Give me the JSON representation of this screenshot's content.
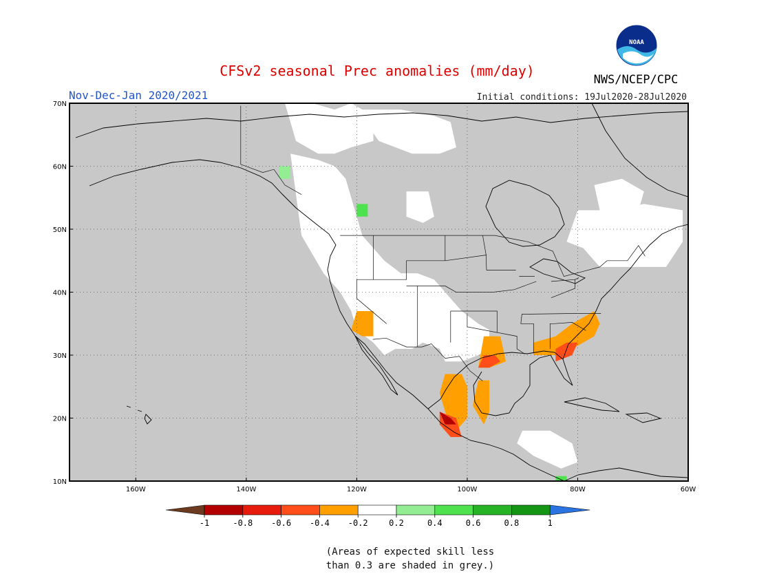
{
  "title": "CFSv2 seasonal Prec anomalies (mm/day)",
  "subtitle_left": "Nov-Dec-Jan 2020/2021",
  "initial_conditions": "Initial conditions: 19Jul2020-28Jul2020",
  "agency": "NWS/NCEP/CPC",
  "logo_text": "NOAA",
  "note_line1": "(Areas of expected skill less",
  "note_line2": "than 0.3 are shaded in grey.)",
  "colors": {
    "title": "#dd0000",
    "subtitle": "#2255cc",
    "grey_mask": "#c8c8c8",
    "no_anomaly": "#ffffff",
    "coast": "#000000"
  },
  "map": {
    "projection": "equirectangular",
    "lon_range": [
      -172,
      -60
    ],
    "lat_range": [
      10,
      70
    ],
    "lat_ticks": [
      {
        "value": 70,
        "label": "70N"
      },
      {
        "value": 60,
        "label": "60N"
      },
      {
        "value": 50,
        "label": "50N"
      },
      {
        "value": 40,
        "label": "40N"
      },
      {
        "value": 30,
        "label": "30N"
      },
      {
        "value": 20,
        "label": "20N"
      },
      {
        "value": 10,
        "label": "10N"
      }
    ],
    "lon_ticks": [
      {
        "value": -160,
        "label": "160W"
      },
      {
        "value": -140,
        "label": "140W"
      },
      {
        "value": -120,
        "label": "120W"
      },
      {
        "value": -100,
        "label": "100W"
      },
      {
        "value": -80,
        "label": "80W"
      },
      {
        "value": -60,
        "label": "60W"
      }
    ],
    "grid": "dotted"
  },
  "legend": {
    "labels": [
      "-1",
      "-0.8",
      "-0.6",
      "-0.4",
      "-0.2",
      "0.2",
      "0.4",
      "0.6",
      "0.8",
      "1"
    ],
    "low_arrow_color": "#6b3a1f",
    "high_arrow_color": "#2a73e0",
    "bins": [
      {
        "range": "-1 to -0.8",
        "color": "#b30000"
      },
      {
        "range": "-0.8 to -0.6",
        "color": "#e81c0c"
      },
      {
        "range": "-0.6 to -0.4",
        "color": "#ff4e1a"
      },
      {
        "range": "-0.4 to -0.2",
        "color": "#ffa000"
      },
      {
        "range": "-0.2 to 0.2",
        "color": "#ffffff"
      },
      {
        "range": "0.2 to 0.4",
        "color": "#93ee93"
      },
      {
        "range": "0.4 to 0.6",
        "color": "#4fe24f"
      },
      {
        "range": "0.6 to 0.8",
        "color": "#26b426"
      },
      {
        "range": "0.8 to 1",
        "color": "#149614"
      }
    ]
  },
  "anomaly_regions": [
    {
      "category": "no_anomaly",
      "lons": [
        -132,
        -127,
        -124,
        -122,
        -121,
        -120,
        -119,
        -117,
        -115,
        -112,
        -109,
        -106,
        -104,
        -101,
        -98,
        -96,
        -96,
        -98,
        -101,
        -104,
        -105,
        -108,
        -110,
        -113,
        -115,
        -117,
        -120,
        -121,
        -123,
        -126,
        -130
      ],
      "lats": [
        62,
        61,
        60,
        58,
        55,
        52,
        49,
        47,
        45,
        43,
        43,
        42,
        40,
        37,
        35,
        34,
        31,
        30,
        29,
        29,
        31,
        32,
        31,
        31,
        30,
        32,
        34,
        37,
        40,
        43,
        49
      ]
    },
    {
      "category": "no_anomaly",
      "lons": [
        -133,
        -128,
        -124,
        -121,
        -117,
        -117,
        -121,
        -124,
        -127,
        -131
      ],
      "lats": [
        70,
        70,
        69,
        70,
        68,
        64,
        63,
        62,
        62,
        64
      ]
    },
    {
      "category": "no_anomaly",
      "lons": [
        -120,
        -112,
        -106,
        -103,
        -102,
        -105,
        -110,
        -116
      ],
      "lats": [
        69,
        69,
        68,
        67,
        63,
        62,
        62,
        64
      ]
    },
    {
      "category": "no_anomaly",
      "lons": [
        -80,
        -74,
        -68,
        -61,
        -61,
        -64,
        -70,
        -76,
        -79,
        -82
      ],
      "lats": [
        53,
        53,
        54,
        53,
        48,
        44,
        44,
        44,
        47,
        48
      ]
    },
    {
      "category": "no_anomaly",
      "lons": [
        -77,
        -72,
        -68,
        -69,
        -72,
        -76
      ],
      "lats": [
        57,
        58,
        56,
        53,
        52,
        53
      ]
    },
    {
      "category": "no_anomaly",
      "lons": [
        -90,
        -85,
        -81,
        -80,
        -83,
        -88,
        -91
      ],
      "lats": [
        18,
        18,
        16,
        13,
        12,
        14,
        16
      ]
    },
    {
      "category": "no_anomaly",
      "lons": [
        -111,
        -107,
        -106,
        -108,
        -111
      ],
      "lats": [
        56,
        56,
        52,
        51,
        52
      ]
    },
    {
      "category": "orange",
      "lons": [
        -120,
        -117,
        -117,
        -119,
        -121
      ],
      "lats": [
        37,
        37,
        33,
        33,
        34
      ]
    },
    {
      "category": "orange",
      "lons": [
        -104,
        -101,
        -100,
        -100,
        -102,
        -103,
        -104,
        -105
      ],
      "lats": [
        27,
        27,
        25,
        20,
        18,
        19,
        21,
        24
      ]
    },
    {
      "category": "orange",
      "lons": [
        -97,
        -94,
        -93,
        -96,
        -98
      ],
      "lats": [
        33,
        33,
        29,
        28,
        28
      ]
    },
    {
      "category": "orange",
      "lons": [
        -88,
        -84,
        -81,
        -77,
        -76,
        -77,
        -81,
        -84,
        -88
      ],
      "lats": [
        32,
        33,
        35,
        37,
        35,
        33,
        31,
        30,
        30
      ]
    },
    {
      "category": "orange",
      "lons": [
        -98,
        -96,
        -96,
        -97,
        -99
      ],
      "lats": [
        26,
        26,
        21,
        19,
        22
      ]
    },
    {
      "category": "red",
      "lons": [
        -105,
        -102,
        -101,
        -103,
        -105
      ],
      "lats": [
        21,
        20,
        17,
        17,
        19
      ]
    },
    {
      "category": "red",
      "lons": [
        -97,
        -95,
        -94,
        -96,
        -98
      ],
      "lats": [
        30,
        30,
        29,
        28,
        28
      ]
    },
    {
      "category": "red",
      "lons": [
        -84,
        -82,
        -80,
        -81,
        -84
      ],
      "lats": [
        31,
        32,
        32,
        30,
        29
      ]
    },
    {
      "category": "darkred",
      "lons": [
        -105,
        -103,
        -102,
        -104
      ],
      "lats": [
        21,
        20,
        19,
        19
      ]
    },
    {
      "category": "lightgreen",
      "lons": [
        -134,
        -132,
        -132,
        -134
      ],
      "lats": [
        60,
        60,
        58,
        58
      ]
    },
    {
      "category": "green",
      "lons": [
        -120,
        -118,
        -118,
        -120
      ],
      "lats": [
        54,
        54,
        52,
        52
      ]
    },
    {
      "category": "green",
      "lons": [
        -84,
        -82,
        -82,
        -84
      ],
      "lats": [
        10.8,
        10.8,
        10,
        10
      ]
    }
  ]
}
